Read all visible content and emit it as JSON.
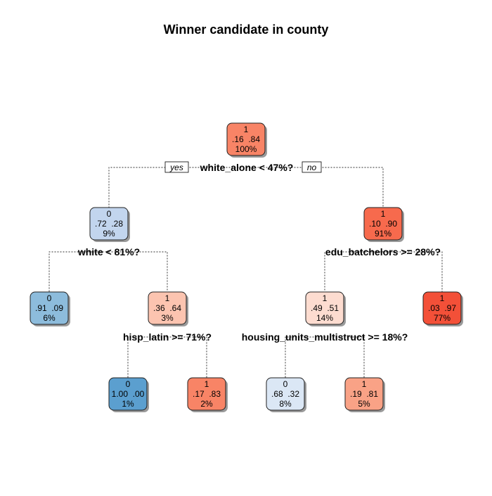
{
  "title": "Winner candidate in county",
  "yes_label": "yes",
  "no_label": "no",
  "colors": {
    "blue_light": "#dbe7f5",
    "blue_mid": "#c2d5ee",
    "blue": "#8dbcdc",
    "blue_dark": "#5b9fcf",
    "red_light": "#fddcd0",
    "red_lighter": "#fcc4b0",
    "red_mid": "#f9a286",
    "red": "#f88466",
    "red_strong": "#f76a4d",
    "red_dark": "#f35038"
  },
  "nodes": [
    {
      "id": "root",
      "cls": "1",
      "probs": ".16  .84",
      "pct": "100%",
      "color": "red",
      "split": "white_alone < 47%?"
    },
    {
      "id": "n2",
      "cls": "0",
      "probs": ".72  .28",
      "pct": "9%",
      "color": "blue_mid",
      "split": "white < 81%?"
    },
    {
      "id": "n3",
      "cls": "1",
      "probs": ".10  .90",
      "pct": "91%",
      "color": "red_strong",
      "split": "edu_batchelors >= 28%?"
    },
    {
      "id": "n4",
      "cls": "0",
      "probs": ".91  .09",
      "pct": "6%",
      "color": "blue",
      "split": ""
    },
    {
      "id": "n5",
      "cls": "1",
      "probs": ".36  .64",
      "pct": "3%",
      "color": "red_lighter",
      "split": "hisp_latin >= 71%?"
    },
    {
      "id": "n6",
      "cls": "1",
      "probs": ".49  .51",
      "pct": "14%",
      "color": "red_light",
      "split": "housing_units_multistruct >= 18%?"
    },
    {
      "id": "n7",
      "cls": "1",
      "probs": ".03  .97",
      "pct": "77%",
      "color": "red_dark",
      "split": ""
    },
    {
      "id": "n10",
      "cls": "0",
      "probs": "1.00  .00",
      "pct": "1%",
      "color": "blue_dark",
      "split": ""
    },
    {
      "id": "n11",
      "cls": "1",
      "probs": ".17  .83",
      "pct": "2%",
      "color": "red",
      "split": ""
    },
    {
      "id": "n12",
      "cls": "0",
      "probs": ".68  .32",
      "pct": "8%",
      "color": "blue_light",
      "split": ""
    },
    {
      "id": "n13",
      "cls": "1",
      "probs": ".19  .81",
      "pct": "5%",
      "color": "red_mid",
      "split": ""
    }
  ],
  "edges": [
    {
      "from": "root",
      "to": "n2"
    },
    {
      "from": "root",
      "to": "n3"
    },
    {
      "from": "n2",
      "to": "n4"
    },
    {
      "from": "n2",
      "to": "n5"
    },
    {
      "from": "n3",
      "to": "n6"
    },
    {
      "from": "n3",
      "to": "n7"
    },
    {
      "from": "n5",
      "to": "n10"
    },
    {
      "from": "n5",
      "to": "n11"
    },
    {
      "from": "n6",
      "to": "n12"
    },
    {
      "from": "n6",
      "to": "n13"
    }
  ]
}
